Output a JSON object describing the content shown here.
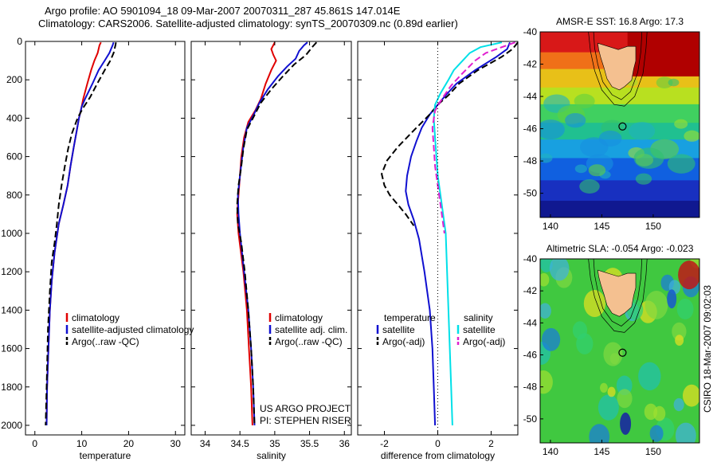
{
  "header": {
    "line1": "Argo profile: AO 5901094_18 09-Mar-2007 20070311_287 45.861S 147.014E",
    "line2": "Climatology: CARS2006. Satellite-adjusted climatology: synTS_20070309.nc (0.89d earlier)"
  },
  "colors": {
    "climatology": "#e00000",
    "satellite": "#1010d0",
    "argo": "#000000",
    "sal_satellite": "#00e0e8",
    "sal_argo": "#e020d0"
  },
  "chart_data": [
    {
      "type": "line",
      "id": "temperature",
      "xlabel": "temperature",
      "ylabel": "",
      "xlim": [
        -2,
        32
      ],
      "ylim": [
        2050,
        0
      ],
      "xticks": [
        0,
        10,
        20,
        30
      ],
      "yticks": [
        0,
        200,
        400,
        600,
        800,
        1000,
        1200,
        1400,
        1600,
        1800,
        2000
      ],
      "y_inverted": true,
      "legend_position": "bottom-center",
      "legend": [
        "climatology",
        "satellite-adjusted climatology",
        "Argo(..raw -QC)"
      ],
      "series": [
        {
          "name": "climatology",
          "style": "solid",
          "color": "#e00000",
          "points": [
            [
              14.1,
              5
            ],
            [
              13.8,
              20
            ],
            [
              13.4,
              60
            ],
            [
              12.7,
              100
            ],
            [
              12.0,
              150
            ],
            [
              11.2,
              220
            ],
            [
              10.3,
              300
            ],
            [
              9.9,
              350
            ],
            [
              9.4,
              400
            ],
            [
              8.9,
              470
            ],
            [
              8.3,
              550
            ],
            [
              7.6,
              650
            ],
            [
              7.0,
              750
            ],
            [
              6.1,
              850
            ],
            [
              5.1,
              950
            ],
            [
              4.2,
              1100
            ],
            [
              3.6,
              1250
            ],
            [
              3.2,
              1400
            ],
            [
              2.9,
              1600
            ],
            [
              2.6,
              1800
            ],
            [
              2.5,
              2000
            ]
          ]
        },
        {
          "name": "satellite-adjusted climatology",
          "style": "solid",
          "color": "#1010d0",
          "points": [
            [
              16.8,
              5
            ],
            [
              16.6,
              20
            ],
            [
              15.9,
              60
            ],
            [
              14.9,
              100
            ],
            [
              13.6,
              150
            ],
            [
              12.3,
              220
            ],
            [
              10.7,
              300
            ],
            [
              10.0,
              340
            ],
            [
              9.4,
              400
            ],
            [
              8.9,
              470
            ],
            [
              8.3,
              550
            ],
            [
              7.6,
              650
            ],
            [
              7.0,
              750
            ],
            [
              6.1,
              850
            ],
            [
              5.1,
              950
            ],
            [
              4.2,
              1100
            ],
            [
              3.6,
              1250
            ],
            [
              3.2,
              1400
            ],
            [
              2.9,
              1600
            ],
            [
              2.6,
              1800
            ],
            [
              2.5,
              2000
            ]
          ]
        },
        {
          "name": "Argo(..raw -QC)",
          "style": "dash",
          "color": "#000000",
          "points": [
            [
              17.3,
              5
            ],
            [
              17.2,
              20
            ],
            [
              16.8,
              60
            ],
            [
              16.1,
              100
            ],
            [
              14.9,
              150
            ],
            [
              13.3,
              220
            ],
            [
              11.8,
              290
            ],
            [
              10.2,
              350
            ],
            [
              9.1,
              400
            ],
            [
              7.9,
              480
            ],
            [
              7.1,
              560
            ],
            [
              6.4,
              650
            ],
            [
              5.7,
              750
            ],
            [
              5.1,
              850
            ],
            [
              4.7,
              950
            ],
            [
              4.2,
              1050
            ],
            [
              3.6,
              1150
            ],
            [
              3.2,
              1300
            ],
            [
              2.8,
              1500
            ],
            [
              2.6,
              1700
            ],
            [
              2.4,
              1900
            ],
            [
              2.3,
              2000
            ]
          ]
        }
      ]
    },
    {
      "type": "line",
      "id": "salinity",
      "xlabel": "salinity",
      "ylabel": "",
      "xlim": [
        33.8,
        36.1
      ],
      "ylim": [
        2050,
        0
      ],
      "xticks": [
        34,
        34.5,
        35,
        35.5,
        36
      ],
      "yticks": [
        0,
        200,
        400,
        600,
        800,
        1000,
        1200,
        1400,
        1600,
        1800,
        2000
      ],
      "y_inverted": true,
      "legend_position": "bottom-right",
      "legend": [
        "climatology",
        "satellite adj. clim.",
        "Argo(..raw -QC)"
      ],
      "annotations": [
        "US ARGO PROJECT",
        "PI: STEPHEN RISER"
      ],
      "series": [
        {
          "name": "climatology",
          "style": "solid",
          "color": "#e00000",
          "points": [
            [
              35.0,
              5
            ],
            [
              34.95,
              40
            ],
            [
              34.98,
              70
            ],
            [
              35.02,
              100
            ],
            [
              34.95,
              150
            ],
            [
              34.87,
              220
            ],
            [
              34.8,
              300
            ],
            [
              34.72,
              360
            ],
            [
              34.62,
              420
            ],
            [
              34.56,
              500
            ],
            [
              34.52,
              600
            ],
            [
              34.5,
              700
            ],
            [
              34.48,
              800
            ],
            [
              34.46,
              900
            ],
            [
              34.48,
              1000
            ],
            [
              34.55,
              1200
            ],
            [
              34.6,
              1400
            ],
            [
              34.63,
              1600
            ],
            [
              34.66,
              1800
            ],
            [
              34.68,
              2000
            ]
          ]
        },
        {
          "name": "satellite adj. clim.",
          "style": "solid",
          "color": "#1010d0",
          "points": [
            [
              35.47,
              5
            ],
            [
              35.42,
              20
            ],
            [
              35.35,
              50
            ],
            [
              35.3,
              90
            ],
            [
              35.18,
              130
            ],
            [
              35.05,
              180
            ],
            [
              34.9,
              250
            ],
            [
              34.78,
              320
            ],
            [
              34.7,
              380
            ],
            [
              34.6,
              450
            ],
            [
              34.55,
              550
            ],
            [
              34.5,
              700
            ],
            [
              34.47,
              800
            ],
            [
              34.48,
              900
            ],
            [
              34.5,
              1000
            ],
            [
              34.56,
              1200
            ],
            [
              34.62,
              1400
            ],
            [
              34.66,
              1600
            ],
            [
              34.69,
              1800
            ],
            [
              34.71,
              2000
            ]
          ]
        },
        {
          "name": "Argo(..raw -QC)",
          "style": "dash",
          "color": "#000000",
          "points": [
            [
              35.6,
              5
            ],
            [
              35.55,
              25
            ],
            [
              35.45,
              70
            ],
            [
              35.28,
              120
            ],
            [
              35.12,
              180
            ],
            [
              34.95,
              250
            ],
            [
              34.8,
              320
            ],
            [
              34.7,
              390
            ],
            [
              34.6,
              460
            ],
            [
              34.55,
              560
            ],
            [
              34.52,
              650
            ],
            [
              34.48,
              750
            ],
            [
              34.46,
              850
            ],
            [
              34.47,
              950
            ],
            [
              34.52,
              1050
            ],
            [
              34.57,
              1200
            ],
            [
              34.62,
              1400
            ],
            [
              34.66,
              1600
            ],
            [
              34.69,
              1800
            ],
            [
              34.71,
              2000
            ]
          ]
        }
      ]
    },
    {
      "type": "line",
      "id": "difference",
      "xlabel": "difference from climatology",
      "ylabel": "",
      "xlim": [
        -3,
        3
      ],
      "ylim": [
        2050,
        0
      ],
      "xticks": [
        -2,
        0,
        2
      ],
      "yticks": [
        0,
        200,
        400,
        600,
        800,
        1000,
        1200,
        1400,
        1600,
        1800,
        2000
      ],
      "y_inverted": true,
      "zero_line": "dotted",
      "legend_position": "bottom",
      "legend_groups": [
        {
          "title": "temperature",
          "items": [
            "satellite",
            "Argo(-adj)"
          ]
        },
        {
          "title": "salinity",
          "items": [
            "satellite",
            "Argo(-adj)"
          ]
        }
      ],
      "series": [
        {
          "name": "temperature satellite",
          "style": "solid",
          "color": "#1010d0",
          "points": [
            [
              2.7,
              5
            ],
            [
              2.6,
              40
            ],
            [
              2.2,
              80
            ],
            [
              1.4,
              150
            ],
            [
              0.7,
              220
            ],
            [
              0.3,
              280
            ],
            [
              0.0,
              330
            ],
            [
              -0.3,
              380
            ],
            [
              -0.6,
              450
            ],
            [
              -0.8,
              520
            ],
            [
              -1.0,
              600
            ],
            [
              -1.15,
              700
            ],
            [
              -1.2,
              780
            ],
            [
              -1.1,
              850
            ],
            [
              -0.9,
              930
            ],
            [
              -0.7,
              1030
            ],
            [
              -0.5,
              1200
            ],
            [
              -0.3,
              1400
            ],
            [
              -0.2,
              1600
            ],
            [
              -0.15,
              1800
            ],
            [
              -0.1,
              2000
            ]
          ]
        },
        {
          "name": "temperature Argo(-adj)",
          "style": "dash",
          "color": "#000000",
          "points": [
            [
              3.0,
              5
            ],
            [
              2.8,
              40
            ],
            [
              2.4,
              80
            ],
            [
              1.5,
              150
            ],
            [
              0.8,
              220
            ],
            [
              0.4,
              280
            ],
            [
              0.0,
              330
            ],
            [
              -0.3,
              380
            ],
            [
              -0.8,
              450
            ],
            [
              -1.5,
              550
            ],
            [
              -1.9,
              620
            ],
            [
              -2.1,
              690
            ],
            [
              -2.0,
              750
            ],
            [
              -1.8,
              800
            ],
            [
              -1.5,
              850
            ],
            [
              -1.2,
              900
            ],
            [
              -0.9,
              960
            ]
          ]
        },
        {
          "name": "salinity satellite",
          "style": "solid",
          "color": "#00e0e8",
          "points": [
            [
              2.4,
              5
            ],
            [
              1.6,
              30
            ],
            [
              1.2,
              60
            ],
            [
              1.0,
              90
            ],
            [
              0.6,
              150
            ],
            [
              0.4,
              200
            ],
            [
              0.1,
              270
            ],
            [
              -0.1,
              330
            ],
            [
              -0.15,
              400
            ],
            [
              -0.1,
              500
            ],
            [
              -0.05,
              600
            ],
            [
              0.0,
              700
            ],
            [
              0.1,
              800
            ],
            [
              0.2,
              900
            ],
            [
              0.3,
              1000
            ],
            [
              0.35,
              1200
            ],
            [
              0.4,
              1400
            ],
            [
              0.45,
              1600
            ],
            [
              0.5,
              1800
            ],
            [
              0.55,
              2000
            ]
          ]
        },
        {
          "name": "salinity Argo(-adj)",
          "style": "dash",
          "color": "#e020d0",
          "points": [
            [
              2.9,
              5
            ],
            [
              2.5,
              25
            ],
            [
              1.8,
              60
            ],
            [
              1.4,
              100
            ],
            [
              0.9,
              170
            ],
            [
              0.5,
              230
            ],
            [
              0.2,
              290
            ],
            [
              -0.1,
              360
            ],
            [
              -0.2,
              450
            ],
            [
              -0.15,
              550
            ],
            [
              -0.1,
              650
            ],
            [
              0.0,
              750
            ],
            [
              0.1,
              850
            ],
            [
              0.2,
              950
            ],
            [
              0.25,
              1000
            ]
          ]
        }
      ]
    }
  ],
  "maps": [
    {
      "title": "AMSR-E SST: 16.8 Argo: 17.3",
      "xticks": [
        "140",
        "145",
        "150"
      ],
      "yticks": [
        "-40",
        "-42",
        "-44",
        "-46",
        "-48",
        "-50"
      ],
      "lon_range": [
        139,
        154.5
      ],
      "lat_range": [
        -51.5,
        -40
      ]
    },
    {
      "title": "Altimetric SLA: -0.054 Argo: -0.023",
      "xticks": [
        "140",
        "145",
        "150"
      ],
      "yticks": [
        "-40",
        "-42",
        "-44",
        "-46",
        "-48",
        "-50"
      ],
      "lon_range": [
        139,
        154.5
      ],
      "lat_range": [
        -51.5,
        -40
      ]
    }
  ],
  "argo_position": {
    "lon": 147.014,
    "lat": -45.861
  },
  "credit": "CSIRO 18-Mar-2007 09:02:03"
}
